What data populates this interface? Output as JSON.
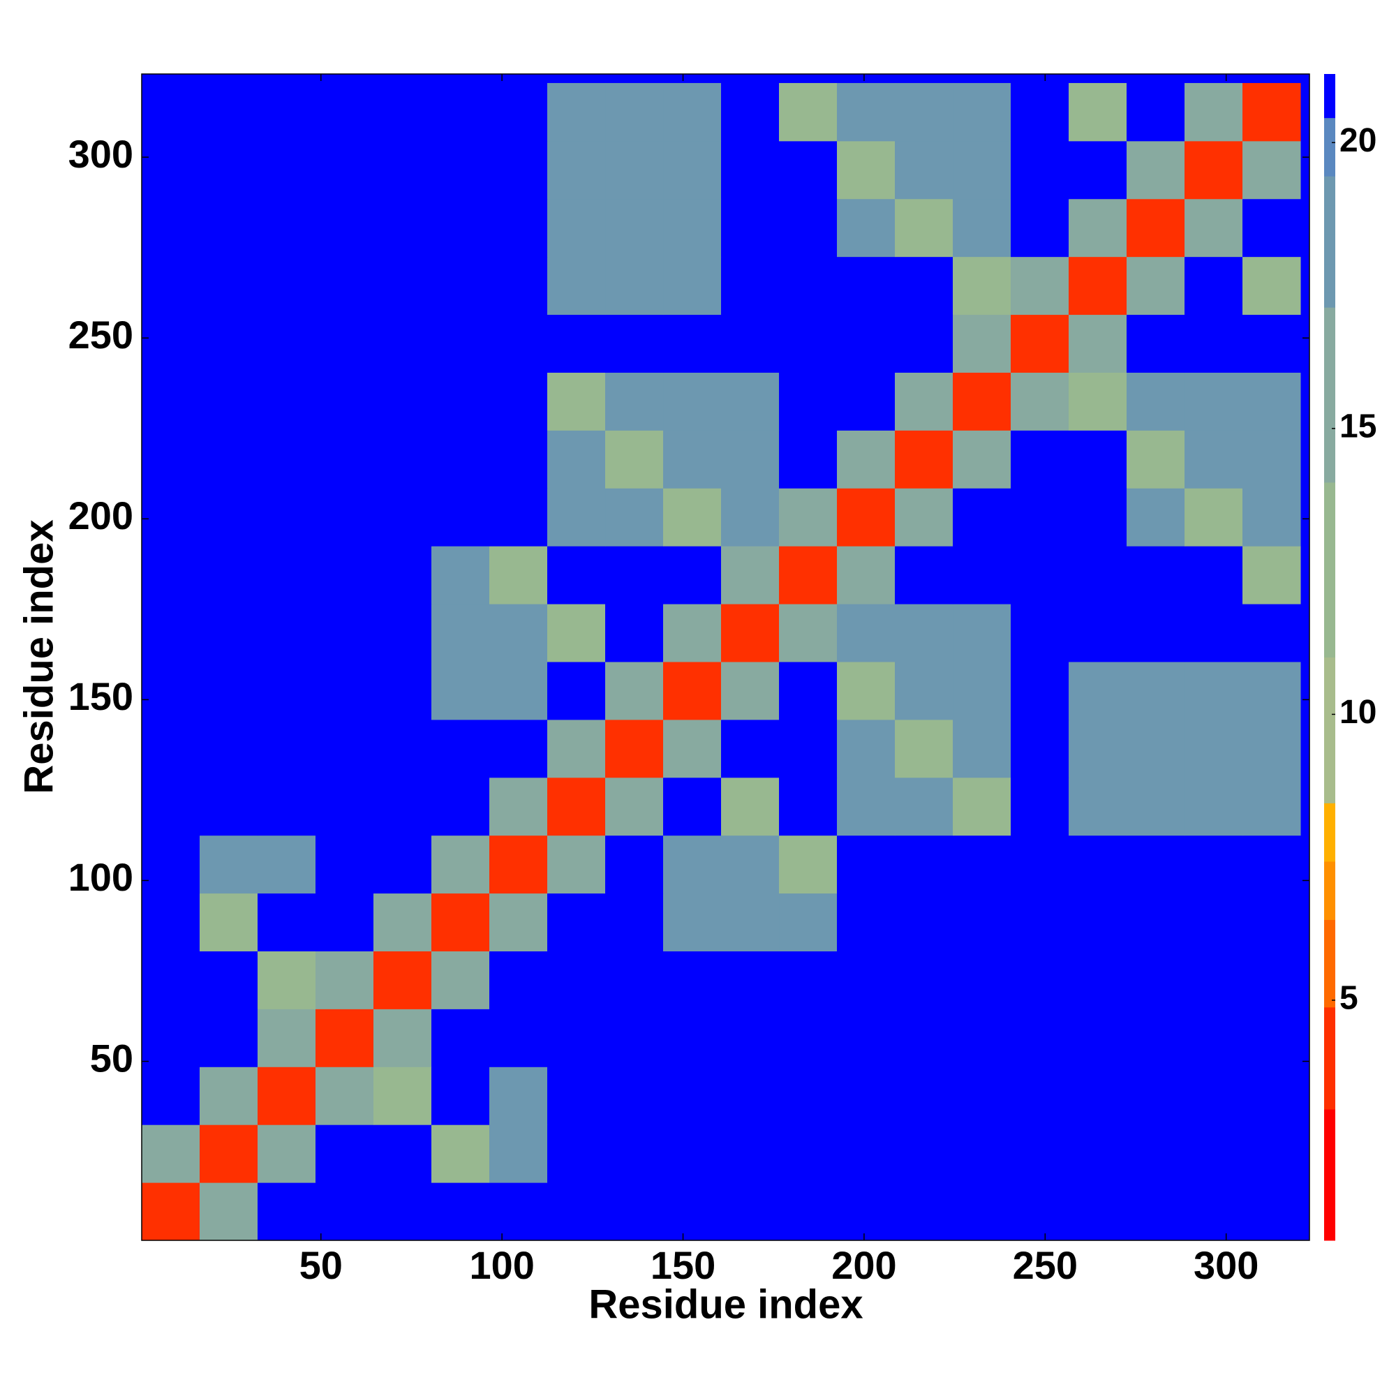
{
  "chart_data": {
    "type": "heatmap",
    "x_label": "Residue index",
    "y_label": "Residue index",
    "bins": [
      0.5,
      16.5,
      32.5,
      48.5,
      64.5,
      80.5,
      96.5,
      112.5,
      128.5,
      144.5,
      160.5,
      176.5,
      192.5,
      208.5,
      224.5,
      240.5,
      256.5,
      272.5,
      288.5,
      304.5,
      320.5
    ],
    "values": [
      [
        3,
        15,
        21,
        21,
        21,
        21,
        21,
        21,
        21,
        21,
        21,
        21,
        21,
        21,
        21,
        21,
        21,
        21,
        21,
        21
      ],
      [
        15,
        3,
        15,
        21,
        21,
        12,
        18,
        21,
        21,
        21,
        21,
        21,
        21,
        21,
        21,
        21,
        21,
        21,
        21,
        21
      ],
      [
        21,
        15,
        3,
        15,
        12,
        21,
        18,
        21,
        21,
        21,
        21,
        21,
        21,
        21,
        21,
        21,
        21,
        21,
        21,
        21
      ],
      [
        21,
        21,
        15,
        3,
        15,
        21,
        21,
        21,
        21,
        21,
        21,
        21,
        21,
        21,
        21,
        21,
        21,
        21,
        21,
        21
      ],
      [
        21,
        21,
        12,
        15,
        3,
        15,
        21,
        21,
        21,
        21,
        21,
        21,
        21,
        21,
        21,
        21,
        21,
        21,
        21,
        21
      ],
      [
        21,
        12,
        21,
        21,
        15,
        3,
        15,
        21,
        21,
        18,
        18,
        18,
        21,
        21,
        21,
        21,
        21,
        21,
        21,
        21
      ],
      [
        21,
        18,
        18,
        21,
        21,
        15,
        3,
        15,
        21,
        18,
        18,
        12,
        21,
        21,
        21,
        21,
        21,
        21,
        21,
        21
      ],
      [
        21,
        21,
        21,
        21,
        21,
        21,
        15,
        3,
        15,
        21,
        12,
        21,
        18,
        18,
        12,
        21,
        18,
        18,
        18,
        18
      ],
      [
        21,
        21,
        21,
        21,
        21,
        21,
        21,
        15,
        3,
        15,
        21,
        21,
        18,
        12,
        18,
        21,
        18,
        18,
        18,
        18
      ],
      [
        21,
        21,
        21,
        21,
        21,
        18,
        18,
        21,
        15,
        3,
        15,
        21,
        12,
        18,
        18,
        21,
        18,
        18,
        18,
        18
      ],
      [
        21,
        21,
        21,
        21,
        21,
        18,
        18,
        12,
        21,
        15,
        3,
        15,
        18,
        18,
        18,
        21,
        21,
        21,
        21,
        21
      ],
      [
        21,
        21,
        21,
        21,
        21,
        18,
        12,
        21,
        21,
        21,
        15,
        3,
        15,
        21,
        21,
        21,
        21,
        21,
        21,
        12
      ],
      [
        21,
        21,
        21,
        21,
        21,
        21,
        21,
        18,
        18,
        12,
        18,
        15,
        3,
        15,
        21,
        21,
        21,
        18,
        12,
        18
      ],
      [
        21,
        21,
        21,
        21,
        21,
        21,
        21,
        18,
        12,
        18,
        18,
        21,
        15,
        3,
        15,
        21,
        21,
        12,
        18,
        18
      ],
      [
        21,
        21,
        21,
        21,
        21,
        21,
        21,
        12,
        18,
        18,
        18,
        21,
        21,
        15,
        3,
        15,
        12,
        18,
        18,
        18
      ],
      [
        21,
        21,
        21,
        21,
        21,
        21,
        21,
        21,
        21,
        21,
        21,
        21,
        21,
        21,
        15,
        3,
        15,
        21,
        21,
        21
      ],
      [
        21,
        21,
        21,
        21,
        21,
        21,
        21,
        18,
        18,
        18,
        21,
        21,
        21,
        21,
        12,
        15,
        3,
        15,
        21,
        12
      ],
      [
        21,
        21,
        21,
        21,
        21,
        21,
        21,
        18,
        18,
        18,
        21,
        21,
        18,
        12,
        18,
        21,
        15,
        3,
        15,
        21
      ],
      [
        21,
        21,
        21,
        21,
        21,
        21,
        21,
        18,
        18,
        18,
        21,
        21,
        12,
        18,
        18,
        21,
        21,
        15,
        3,
        15
      ],
      [
        21,
        21,
        21,
        21,
        21,
        21,
        21,
        18,
        18,
        18,
        21,
        12,
        18,
        18,
        18,
        21,
        12,
        21,
        15,
        3
      ]
    ],
    "xlim": [
      0.5,
      323
    ],
    "ylim": [
      0.5,
      323
    ],
    "xticks": [
      50,
      100,
      150,
      200,
      250,
      300
    ],
    "yticks": [
      50,
      100,
      150,
      200,
      250,
      300
    ],
    "zlim": [
      0.8,
      21.2
    ],
    "zticks": [
      5,
      10,
      15,
      20
    ],
    "colorscale": [
      {
        "value": 0.8,
        "color": "#ff0000"
      },
      {
        "value": 3,
        "color": "#ff3000"
      },
      {
        "value": 5,
        "color": "#ff6a00"
      },
      {
        "value": 6.5,
        "color": "#ff9000"
      },
      {
        "value": 7.5,
        "color": "#ffb000"
      },
      {
        "value": 8.5,
        "color": "#a8bc8c"
      },
      {
        "value": 11,
        "color": "#98b890"
      },
      {
        "value": 14,
        "color": "#88aaa0"
      },
      {
        "value": 17,
        "color": "#6d98b0"
      },
      {
        "value": 19.5,
        "color": "#5a88c0"
      },
      {
        "value": 20.5,
        "color": "#0000ff"
      }
    ]
  }
}
